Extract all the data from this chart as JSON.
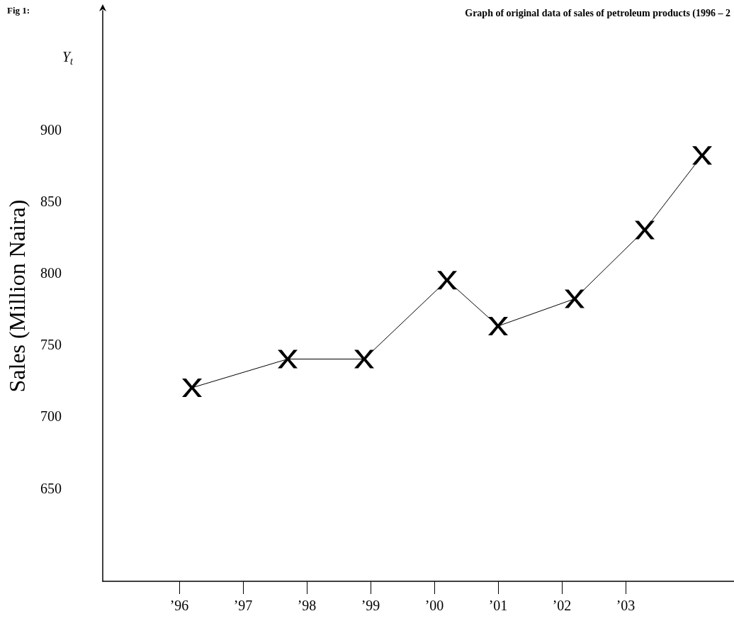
{
  "chart_data": {
    "type": "line",
    "title": "Graph of original data of sales of petroleum products (1996 – 2",
    "ylabel": "Sales (Million Naira)",
    "annotations": [
      "Fig 1:",
      "Y$_{t}$"
    ],
    "x": [
      1996.2,
      1997.7,
      1998.9,
      2000.2,
      2001.0,
      2002.2,
      2003.3,
      2004.2
    ],
    "series": [
      {
        "color": "#000000",
        "values": [
          720,
          740,
          740,
          795,
          763,
          782,
          830,
          882
        ]
      }
    ],
    "xlim": [
      1994.8,
      2004.7
    ],
    "xticks": [
      {
        "value": 1996,
        "label": "’96"
      },
      {
        "value": 1997,
        "label": "’97"
      },
      {
        "value": 1998,
        "label": "’98"
      },
      {
        "value": 1999,
        "label": "’99"
      },
      {
        "value": 2000,
        "label": "’00"
      },
      {
        "value": 2001,
        "label": "’01"
      },
      {
        "value": 2002,
        "label": "’02"
      },
      {
        "value": 2003,
        "label": "’03"
      }
    ],
    "ylim": [
      585,
      983
    ],
    "yticks": [
      650,
      700,
      750,
      800,
      850,
      900
    ],
    "grid": false,
    "marker": "cross",
    "line_style": "solid"
  }
}
